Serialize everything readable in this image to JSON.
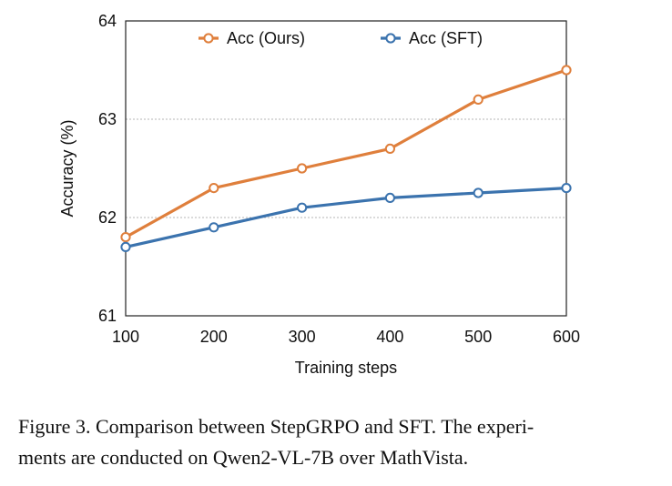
{
  "chart_data": {
    "type": "line",
    "x": [
      100,
      200,
      300,
      400,
      500,
      600
    ],
    "series": [
      {
        "name": "Acc (Ours)",
        "color": "#DF7F3C",
        "values": [
          61.8,
          62.3,
          62.5,
          62.7,
          63.2,
          63.5
        ]
      },
      {
        "name": "Acc (SFT)",
        "color": "#3B73AE",
        "values": [
          61.7,
          61.9,
          62.1,
          62.2,
          62.25,
          62.3
        ]
      }
    ],
    "xlabel": "Training steps",
    "ylabel": "Accuracy (%)",
    "xlim": [
      100,
      600
    ],
    "ylim": [
      61,
      64
    ],
    "yticks": [
      61,
      62,
      63,
      64
    ],
    "xticks": [
      100,
      200,
      300,
      400,
      500,
      600
    ],
    "grid": "horizontal dotted",
    "legend": "top"
  },
  "caption": {
    "line1": "Figure 3.  Comparison between StepGRPO and SFT. The experi-",
    "line2": "ments are conducted on Qwen2-VL-7B over MathVista."
  }
}
